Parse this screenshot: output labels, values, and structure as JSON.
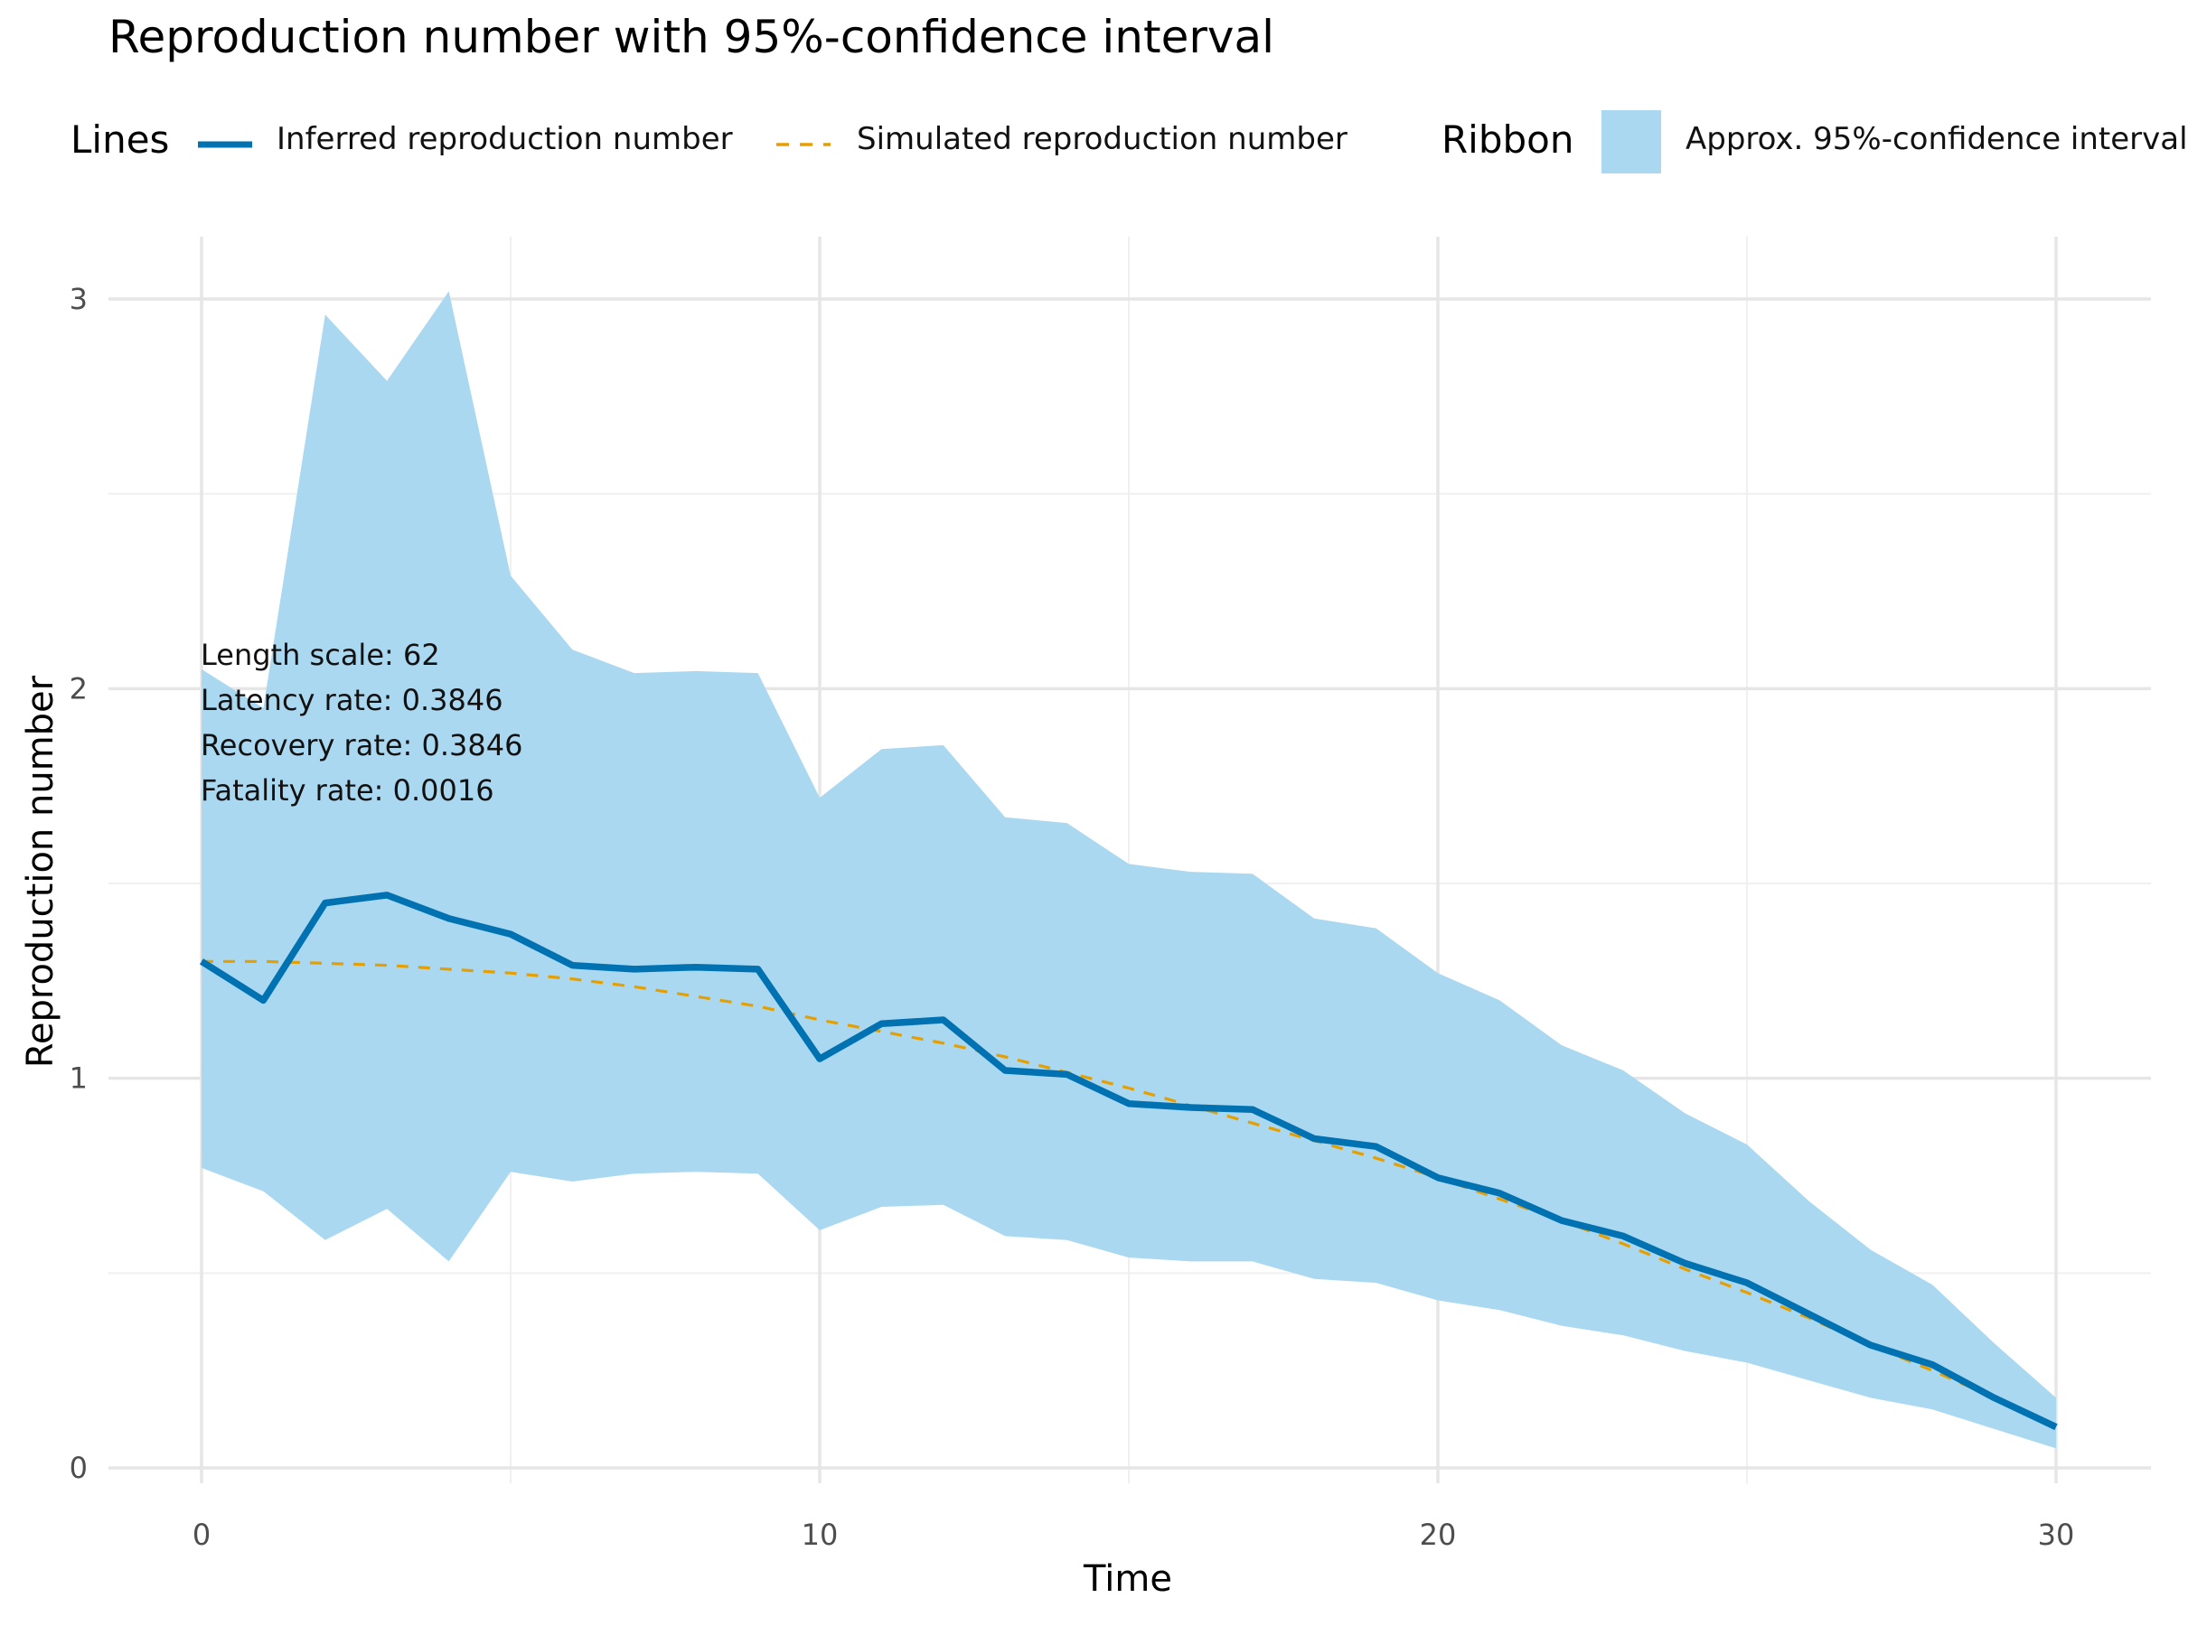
{
  "chart_data": {
    "type": "line",
    "title": "Reproduction number with 95%-confidence interval",
    "xlabel": "Time",
    "ylabel": "Reproduction number",
    "xlim": [
      0,
      30
    ],
    "ylim": [
      0,
      3
    ],
    "x_ticks": [
      0,
      10,
      20,
      30
    ],
    "y_ticks": [
      0,
      1,
      2,
      3
    ],
    "x_tick_labels": [
      "0",
      "10",
      "20",
      "30"
    ],
    "y_tick_labels": [
      "0",
      "1",
      "2",
      "3"
    ],
    "grid": true,
    "legend_position": "top",
    "x": [
      0,
      1,
      2,
      3,
      4,
      5,
      6,
      7,
      8,
      9,
      10,
      11,
      12,
      13,
      14,
      15,
      16,
      17,
      18,
      19,
      20,
      21,
      22,
      23,
      24,
      25,
      26,
      27,
      28,
      29,
      30
    ],
    "series": [
      {
        "name": "Inferred reproduction number",
        "style": "solid",
        "color": "#0072B2",
        "values": [
          1.3,
          1.2,
          1.45,
          1.47,
          1.41,
          1.37,
          1.29,
          1.28,
          1.285,
          1.28,
          1.05,
          1.14,
          1.15,
          1.02,
          1.01,
          0.935,
          0.925,
          0.92,
          0.845,
          0.825,
          0.745,
          0.705,
          0.635,
          0.595,
          0.525,
          0.475,
          0.395,
          0.315,
          0.265,
          0.18,
          0.105
        ]
      },
      {
        "name": "Simulated reproduction number",
        "style": "dashed",
        "color": "#E69F00",
        "values": [
          1.3,
          1.3,
          1.295,
          1.29,
          1.28,
          1.27,
          1.255,
          1.235,
          1.21,
          1.185,
          1.15,
          1.12,
          1.09,
          1.055,
          1.015,
          0.975,
          0.93,
          0.885,
          0.84,
          0.795,
          0.745,
          0.69,
          0.635,
          0.575,
          0.51,
          0.45,
          0.385,
          0.315,
          0.25,
          0.18,
          0.105
        ]
      }
    ],
    "ribbon": {
      "name": "Approx. 95%-confidence interval",
      "color": "#ABD8F1",
      "lower": [
        0.77,
        0.71,
        0.585,
        0.665,
        0.53,
        0.76,
        0.735,
        0.755,
        0.76,
        0.755,
        0.61,
        0.67,
        0.675,
        0.595,
        0.585,
        0.54,
        0.53,
        0.53,
        0.485,
        0.475,
        0.43,
        0.405,
        0.365,
        0.34,
        0.3,
        0.27,
        0.225,
        0.18,
        0.15,
        0.1,
        0.05
      ],
      "upper": [
        2.05,
        1.95,
        2.96,
        2.79,
        3.02,
        2.29,
        2.1,
        2.04,
        2.045,
        2.04,
        1.72,
        1.845,
        1.855,
        1.67,
        1.655,
        1.55,
        1.53,
        1.525,
        1.41,
        1.385,
        1.27,
        1.2,
        1.085,
        1.02,
        0.91,
        0.83,
        0.685,
        0.56,
        0.47,
        0.32,
        0.18
      ]
    },
    "annotations": [
      "Length scale: 62",
      "Latency rate: 0.3846",
      "Recovery rate: 0.3846",
      "Fatality rate: 0.0016"
    ],
    "legend": {
      "lines_title": "Lines",
      "ribbon_title": "Ribbon",
      "inferred_label": "Inferred reproduction number",
      "simulated_label": "Simulated reproduction number",
      "ribbon_label": "Approx. 95%-confidence interval"
    }
  }
}
